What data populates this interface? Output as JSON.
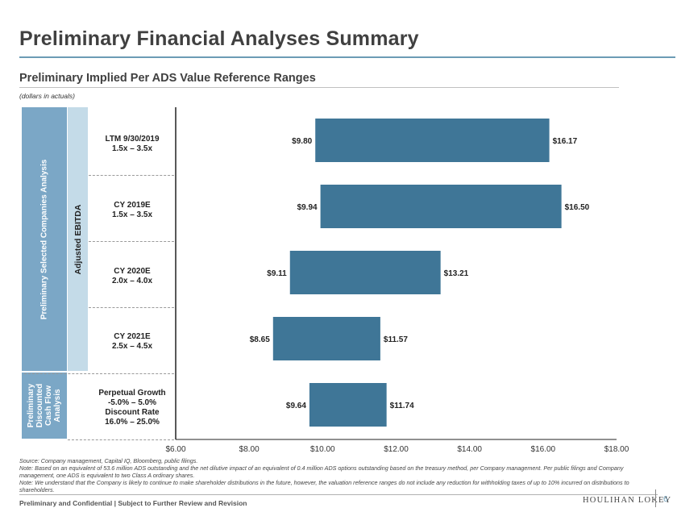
{
  "header": {
    "title": "Preliminary Financial Analyses Summary",
    "subtitle": "Preliminary Implied Per ADS Value Reference Ranges",
    "units_note": "(dollars in actuals)"
  },
  "sidebar": {
    "group_selected_companies": "Preliminary Selected Companies Analysis",
    "group_dcf_lines": [
      "Preliminary",
      "Discounted",
      "Cash Flow",
      "Analysis"
    ],
    "sub_group": "Adjusted EBITDA"
  },
  "rows": [
    {
      "lines": [
        "LTM 9/30/2019",
        "1.5x – 3.5x"
      ]
    },
    {
      "lines": [
        "CY 2019E",
        "1.5x – 3.5x"
      ]
    },
    {
      "lines": [
        "CY 2020E",
        "2.0x – 4.0x"
      ]
    },
    {
      "lines": [
        "CY 2021E",
        "2.5x – 4.5x"
      ]
    },
    {
      "lines": [
        "Perpetual Growth",
        "-5.0% – 5.0%",
        "Discount Rate",
        "16.0% – 25.0%"
      ]
    }
  ],
  "chart_data": {
    "type": "bar",
    "orientation": "horizontal floating range",
    "categories": [
      "LTM 9/30/2019 1.5x – 3.5x",
      "CY 2019E 1.5x – 3.5x",
      "CY 2020E 2.0x – 4.0x",
      "CY 2021E 2.5x – 4.5x",
      "Perpetual Growth -5.0% – 5.0% / Discount Rate 16.0% – 25.0%"
    ],
    "series": [
      {
        "name": "Low",
        "values": [
          9.8,
          9.94,
          9.11,
          8.65,
          9.64
        ],
        "labels": [
          "$9.80",
          "$9.94",
          "$9.11",
          "$8.65",
          "$9.64"
        ]
      },
      {
        "name": "High",
        "values": [
          16.17,
          16.5,
          13.21,
          11.57,
          11.74
        ],
        "labels": [
          "$16.17",
          "$16.50",
          "$13.21",
          "$11.57",
          "$11.74"
        ]
      }
    ],
    "xlim": [
      6,
      18
    ],
    "xticks": [
      6,
      8,
      10,
      12,
      14,
      16,
      18
    ],
    "xtick_labels": [
      "$6.00",
      "$8.00",
      "$10.00",
      "$12.00",
      "$14.00",
      "$16.00",
      "$18.00"
    ],
    "bar_color": "#3f7697"
  },
  "footnotes": [
    "Source: Company management, Capital IQ, Bloomberg, public filings.",
    "Note: Based on an equivalent of 53.6 million ADS outstanding and the net dilutive impact of an equivalent of 0.4 million ADS options outstanding based on the treasury method, per Company management. Per public filings and Company management, one ADS is equivalent to two Class A ordinary shares.",
    "Note: We understand that the Company is likely to continue to make shareholder distributions in the future, however, the valuation reference ranges do not include any reduction for withholding taxes of up to 10% incurred on distributions to shareholders."
  ],
  "footer": {
    "confidential": "Preliminary and Confidential | Subject to Further Review and Revision",
    "brand": "HOULIHAN LOKEY",
    "page": "6"
  }
}
